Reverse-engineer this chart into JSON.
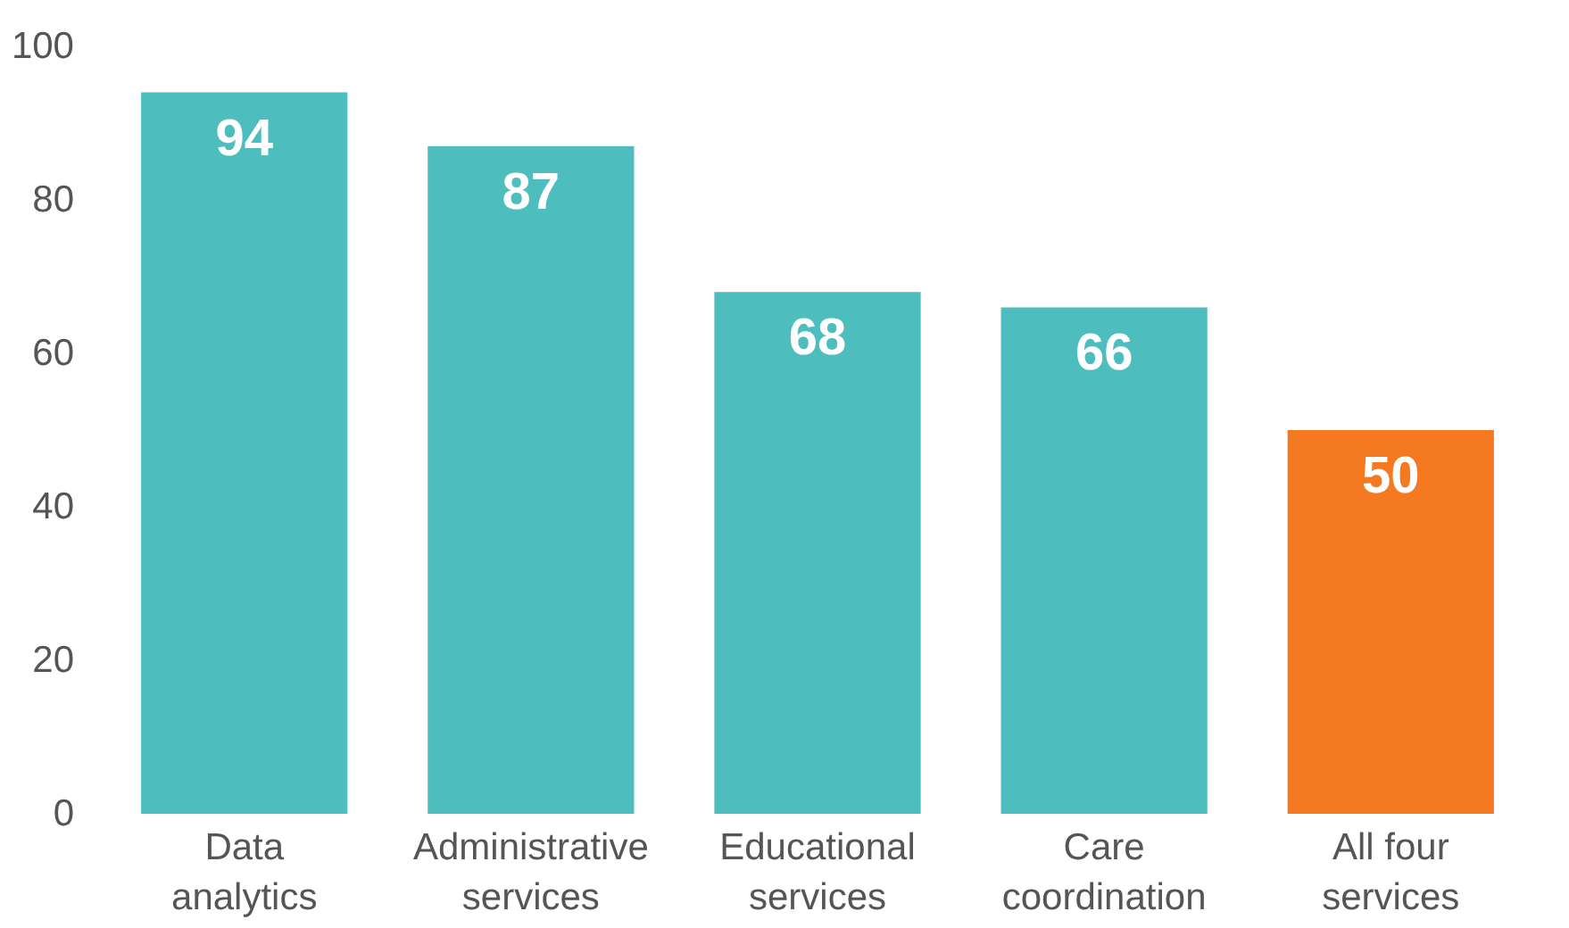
{
  "chart_data": {
    "type": "bar",
    "categories": [
      "Data analytics",
      "Administrative services",
      "Educational services",
      "Care coordination",
      "All four services"
    ],
    "values": [
      94,
      87,
      68,
      66,
      50
    ],
    "colors": [
      "#4dbdbd",
      "#4dbdbd",
      "#4dbdbd",
      "#4dbdbd",
      "#f47920"
    ],
    "ylim": [
      0,
      100
    ],
    "yticks": [
      0,
      20,
      40,
      60,
      80,
      100
    ],
    "grid": false,
    "data_labels": true
  }
}
